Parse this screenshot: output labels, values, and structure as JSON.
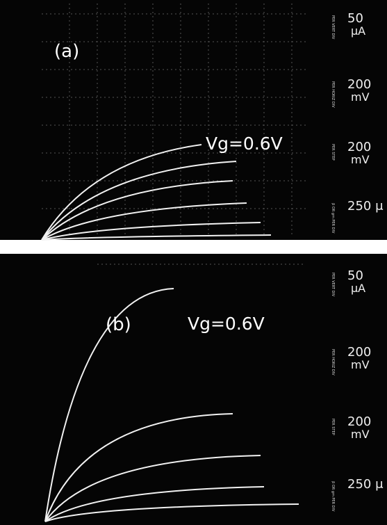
{
  "panels": [
    {
      "label": "(a)",
      "annotation": "Vg=0.6V",
      "controls": [
        {
          "caption": "PER VERT DIV",
          "value": "50",
          "unit": "μA"
        },
        {
          "caption": "PER HORIZ DIV",
          "value": "200",
          "unit": "mV"
        },
        {
          "caption": "PER STEP",
          "value": "200",
          "unit": "mV"
        },
        {
          "caption": "β OR gm PER DIV",
          "value": "250 μ",
          "unit": ""
        }
      ]
    },
    {
      "label": "(b)",
      "annotation": "Vg=0.6V",
      "controls": [
        {
          "caption": "PER VERT DIV",
          "value": "50",
          "unit": "μA"
        },
        {
          "caption": "PER HORIZ DIV",
          "value": "200",
          "unit": "mV"
        },
        {
          "caption": "PER STEP",
          "value": "200",
          "unit": "mV"
        },
        {
          "caption": "β OR gm PER DIV",
          "value": "250 μ",
          "unit": ""
        }
      ]
    }
  ]
}
